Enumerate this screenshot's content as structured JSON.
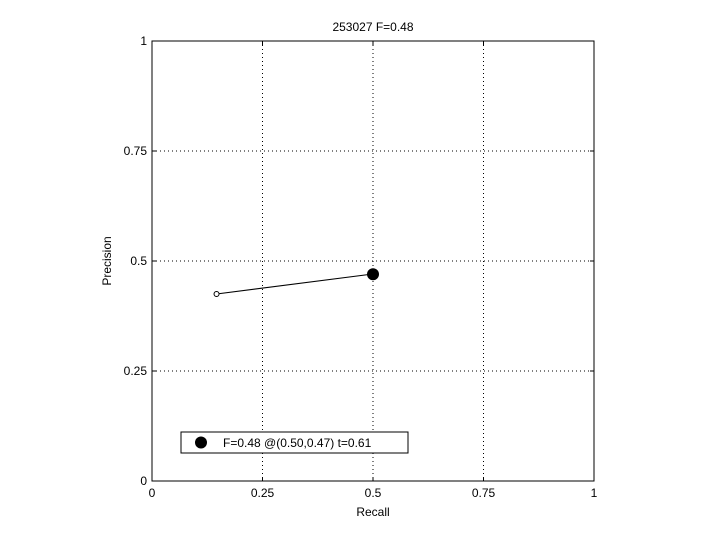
{
  "chart_data": {
    "type": "line",
    "title": "253027 F=0.48",
    "xlabel": "Recall",
    "ylabel": "Precision",
    "xlim": [
      0,
      1
    ],
    "ylim": [
      0,
      1
    ],
    "xticks": [
      0,
      0.25,
      0.5,
      0.75,
      1
    ],
    "xtick_labels": [
      "0",
      "0.25",
      "0.5",
      "0.75",
      "1"
    ],
    "yticks": [
      0,
      0.25,
      0.5,
      0.75,
      1
    ],
    "ytick_labels": [
      "0",
      "0.25",
      "0.5",
      "0.75",
      "1"
    ],
    "grid": true,
    "series": [
      {
        "x": [
          0.146,
          0.495
        ],
        "y": [
          0.425,
          0.47
        ],
        "color": "#000000",
        "start_marker": "open-circle"
      }
    ],
    "best_point": {
      "x": 0.5,
      "y": 0.47,
      "marker": "filled-circle",
      "color": "#000000"
    },
    "legend": {
      "position": "bottom-left",
      "entries": [
        "F=0.48 @(0.50,0.47) t=0.61"
      ]
    }
  }
}
